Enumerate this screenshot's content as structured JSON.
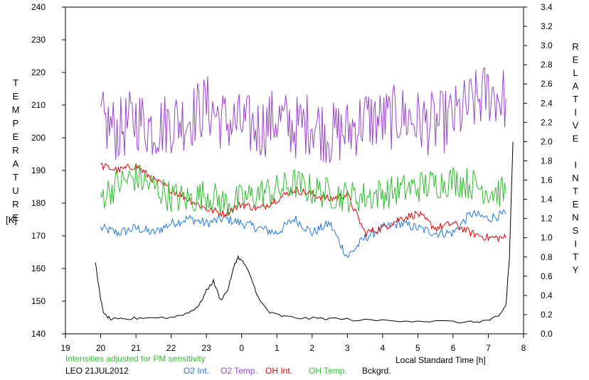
{
  "chart_data": {
    "type": "line",
    "left_axis": {
      "label": "TEMPERATURE",
      "unit": "[K]",
      "range": [
        140,
        240
      ],
      "ticks": [
        140,
        150,
        160,
        170,
        180,
        190,
        200,
        210,
        220,
        230,
        240
      ]
    },
    "right_axis": {
      "label": "RELATIVE INTENSITY",
      "range": [
        0.0,
        3.4
      ],
      "tick_labels": [
        "0.0",
        "0.2",
        "0.4",
        "0.6",
        "0.8",
        "1.0",
        "1.2",
        "1.4",
        "1.6",
        "1.8",
        "2.0",
        "2.2",
        "2.4",
        "2.6",
        "2.8",
        "3.0",
        "3.2",
        "3.4"
      ]
    },
    "x_axis": {
      "label": "Local Standard Time [h]",
      "range": [
        19,
        32
      ],
      "tick_labels": [
        "19",
        "20",
        "21",
        "22",
        "23",
        "0",
        "1",
        "2",
        "3",
        "4",
        "5",
        "6",
        "7",
        "8"
      ]
    },
    "note": "Intensities adjusted for PM sensitivity",
    "station": "LEO 21JUL2012",
    "grid": false,
    "series": [
      {
        "name": "O2 Int.",
        "axis": "right",
        "color": "#2277dd",
        "x": [
          20.0,
          20.5,
          21.0,
          21.5,
          22.0,
          22.5,
          23.0,
          23.5,
          24.0,
          24.5,
          25.0,
          25.5,
          26.0,
          26.5,
          27.0,
          27.5,
          28.0,
          28.5,
          29.0,
          29.5,
          30.0,
          30.5,
          31.0,
          31.5
        ],
        "y": [
          1.1,
          1.05,
          1.1,
          1.05,
          1.15,
          1.2,
          1.15,
          1.2,
          1.15,
          1.1,
          1.05,
          1.2,
          1.05,
          1.15,
          0.8,
          1.0,
          1.1,
          1.15,
          1.1,
          1.05,
          1.05,
          1.25,
          1.2,
          1.25
        ]
      },
      {
        "name": "O2 Temp.",
        "axis": "left",
        "color": "#9944cc",
        "x": [
          20.0,
          20.5,
          21.0,
          21.5,
          22.0,
          22.5,
          23.0,
          23.5,
          24.0,
          24.5,
          25.0,
          25.5,
          26.0,
          26.5,
          27.0,
          27.5,
          28.0,
          28.5,
          29.0,
          29.5,
          30.0,
          30.5,
          31.0,
          31.5
        ],
        "y": [
          205,
          202,
          206,
          203,
          205,
          206,
          210,
          205,
          204,
          203,
          206,
          203,
          205,
          201,
          202,
          206,
          205,
          207,
          205,
          204,
          206,
          210,
          214,
          212
        ]
      },
      {
        "name": "OH Int.",
        "axis": "right",
        "color": "#dd0000",
        "x": [
          20.0,
          20.5,
          21.0,
          21.5,
          22.0,
          22.5,
          23.0,
          23.5,
          24.0,
          24.5,
          25.0,
          25.5,
          26.0,
          26.5,
          27.0,
          27.5,
          28.0,
          28.5,
          29.0,
          29.5,
          30.0,
          30.5,
          31.0,
          31.5
        ],
        "y": [
          1.75,
          1.7,
          1.75,
          1.6,
          1.5,
          1.4,
          1.3,
          1.25,
          1.35,
          1.3,
          1.4,
          1.5,
          1.45,
          1.4,
          1.45,
          1.05,
          1.1,
          1.2,
          1.25,
          1.1,
          1.15,
          1.05,
          1.0,
          1.0
        ]
      },
      {
        "name": "OH Temp.",
        "axis": "left",
        "color": "#33bb33",
        "x": [
          20.0,
          20.5,
          21.0,
          21.5,
          22.0,
          22.5,
          23.0,
          23.5,
          24.0,
          24.5,
          25.0,
          25.5,
          26.0,
          26.5,
          27.0,
          27.5,
          28.0,
          28.5,
          29.0,
          29.5,
          30.0,
          30.5,
          31.0,
          31.5
        ],
        "y": [
          182,
          186,
          188,
          185,
          182,
          181,
          183,
          180,
          181,
          183,
          184,
          186,
          184,
          183,
          182,
          182,
          183,
          184,
          185,
          186,
          187,
          186,
          184,
          183
        ]
      },
      {
        "name": "Bckgrd.",
        "axis": "right",
        "color": "#000000",
        "x": [
          19.85,
          20.0,
          20.1,
          20.3,
          20.7,
          21.2,
          22.0,
          22.5,
          22.8,
          23.0,
          23.2,
          23.4,
          23.6,
          23.8,
          23.9,
          24.1,
          24.3,
          24.5,
          24.8,
          25.2,
          25.8,
          26.5,
          27.5,
          28.5,
          29.5,
          30.5,
          31.0,
          31.3,
          31.5,
          31.6,
          31.7
        ],
        "y": [
          0.75,
          0.35,
          0.2,
          0.15,
          0.15,
          0.17,
          0.17,
          0.22,
          0.3,
          0.45,
          0.55,
          0.35,
          0.45,
          0.72,
          0.8,
          0.72,
          0.55,
          0.35,
          0.22,
          0.18,
          0.16,
          0.16,
          0.14,
          0.14,
          0.13,
          0.12,
          0.14,
          0.18,
          0.3,
          0.8,
          2.0
        ]
      }
    ]
  },
  "legend": [
    {
      "label": "O2 Int.",
      "color": "#2277dd"
    },
    {
      "label": "O2 Temp.",
      "color": "#9944cc"
    },
    {
      "label": "OH Int.",
      "color": "#dd0000"
    },
    {
      "label": "OH Temp.",
      "color": "#33bb33"
    },
    {
      "label": "Bckgrd.",
      "color": "#000000"
    }
  ]
}
